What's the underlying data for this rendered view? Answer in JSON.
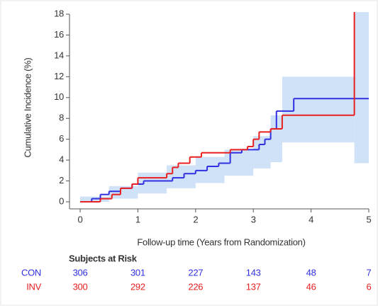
{
  "chart_data": {
    "type": "step",
    "ylabel": "Cumulative Incidence (%)",
    "xlabel": "Follow-up time (Years from Randomization)",
    "xlim": [
      0,
      5
    ],
    "xticks": [
      0,
      1,
      2,
      3,
      4,
      5
    ],
    "ylim": [
      0,
      18
    ],
    "yticks": [
      0,
      2,
      4,
      6,
      8,
      10,
      12,
      14,
      16,
      18
    ],
    "band": {
      "color": "#cfe2f8",
      "edges": [
        0,
        0.5,
        1,
        1.5,
        2,
        2.5,
        3,
        3.3,
        3.5,
        4.75,
        5
      ],
      "lower": [
        0,
        0.3,
        0.8,
        1.3,
        1.8,
        2.5,
        3.2,
        3.8,
        5.7,
        3.7
      ],
      "upper": [
        0.5,
        1.5,
        2.8,
        3.5,
        4.3,
        5.0,
        6.3,
        8.3,
        12,
        18.2
      ]
    },
    "series": [
      {
        "name": "CON",
        "color": "#3030e0",
        "x": [
          0,
          0.2,
          0.35,
          0.5,
          0.7,
          0.9,
          1.1,
          1.6,
          1.8,
          2.0,
          2.2,
          2.4,
          2.6,
          2.8,
          3.1,
          3.2,
          3.3,
          3.4,
          3.7,
          5.0
        ],
        "values": [
          0,
          0.3,
          0.7,
          1.0,
          1.3,
          1.7,
          2.0,
          2.3,
          2.7,
          3.0,
          3.4,
          3.7,
          4.7,
          5.0,
          5.5,
          6.0,
          7.0,
          8.7,
          9.9,
          9.9
        ]
      },
      {
        "name": "INV",
        "color": "#e82020",
        "x": [
          0,
          0.35,
          0.55,
          0.7,
          0.9,
          1.0,
          1.5,
          1.6,
          1.7,
          1.9,
          2.1,
          2.6,
          2.9,
          3.0,
          3.1,
          3.3,
          3.5,
          4.75,
          4.75
        ],
        "values": [
          0,
          0.3,
          0.7,
          1.3,
          1.7,
          2.3,
          2.7,
          3.3,
          3.7,
          4.3,
          4.7,
          5.0,
          5.3,
          6.0,
          6.7,
          7.0,
          8.3,
          8.3,
          18.2
        ]
      }
    ],
    "risk_table": {
      "title": "Subjects at Risk",
      "rows": [
        {
          "name": "CON",
          "color": "#3030e0",
          "values": [
            306,
            301,
            227,
            143,
            48,
            7
          ]
        },
        {
          "name": "INV",
          "color": "#e82020",
          "values": [
            300,
            292,
            226,
            137,
            46,
            6
          ]
        }
      ]
    }
  }
}
